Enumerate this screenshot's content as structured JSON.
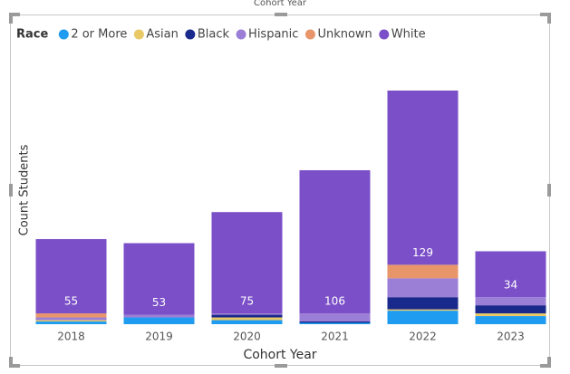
{
  "header_title": "Cohort Year",
  "chart_data": {
    "type": "stacked_bar",
    "legend_title": "Race",
    "legend": "top-left",
    "x_label": "Cohort Year",
    "y_label": "Count Students",
    "categories": [
      "2018",
      "2019",
      "2020",
      "2021",
      "2022",
      "2023"
    ],
    "series": [
      {
        "name": "2 or More",
        "color": "#1f9cf0",
        "values": [
          2,
          5,
          3,
          1,
          10,
          6
        ]
      },
      {
        "name": "Asian",
        "color": "#e8c965",
        "values": [
          1,
          0,
          2,
          0,
          1,
          2
        ]
      },
      {
        "name": "Black",
        "color": "#1a2a8c",
        "values": [
          0,
          0,
          2,
          1,
          9,
          6
        ]
      },
      {
        "name": "Hispanic",
        "color": "#9b7fd6",
        "values": [
          2,
          2,
          1,
          6,
          14,
          6
        ]
      },
      {
        "name": "Unknown",
        "color": "#e8956a",
        "values": [
          3,
          0,
          0,
          0,
          10,
          0
        ]
      },
      {
        "name": "White",
        "color": "#7b4fc8",
        "values": [
          55,
          53,
          75,
          106,
          129,
          34
        ]
      }
    ],
    "data_labels_series": 5
  }
}
